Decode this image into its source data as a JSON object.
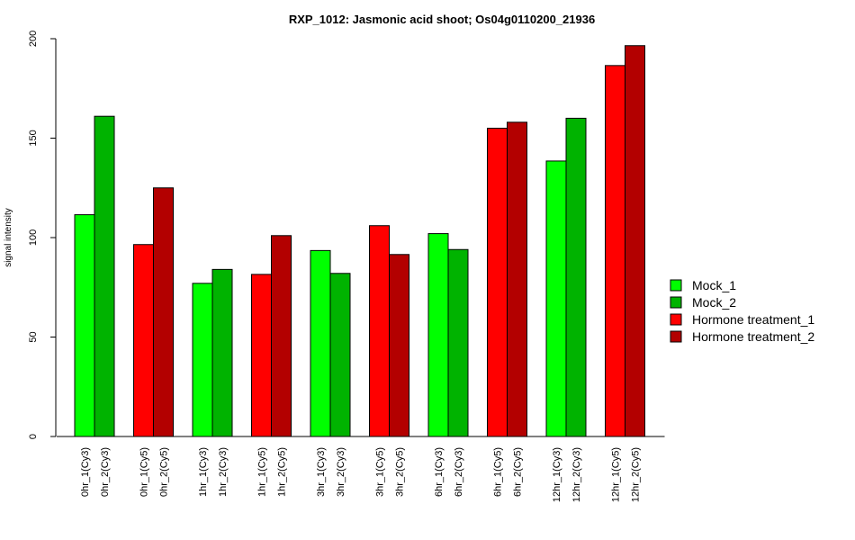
{
  "chart_data": {
    "type": "bar",
    "title": "RXP_1012: Jasmonic acid shoot; Os04g0110200_21936",
    "xlabel": "",
    "ylabel": "signal intensity",
    "ylim": [
      0,
      200
    ],
    "yticks": [
      0,
      50,
      100,
      150,
      200
    ],
    "legend_position": "right",
    "legend": [
      {
        "name": "Mock_1",
        "color": "#00ff00"
      },
      {
        "name": "Mock_2",
        "color": "#00b300"
      },
      {
        "name": "Hormone treatment_1",
        "color": "#ff0000"
      },
      {
        "name": "Hormone treatment_2",
        "color": "#b30000"
      }
    ],
    "groups": [
      {
        "bars": [
          {
            "label": "0hr_1(Cy3)",
            "value": 111.5,
            "color": "#00ff00"
          },
          {
            "label": "0hr_2(Cy3)",
            "value": 161,
            "color": "#00b300"
          }
        ]
      },
      {
        "bars": [
          {
            "label": "0hr_1(Cy5)",
            "value": 96.5,
            "color": "#ff0000"
          },
          {
            "label": "0hr_2(Cy5)",
            "value": 125,
            "color": "#b30000"
          }
        ]
      },
      {
        "bars": [
          {
            "label": "1hr_1(Cy3)",
            "value": 77,
            "color": "#00ff00"
          },
          {
            "label": "1hr_2(Cy3)",
            "value": 84,
            "color": "#00b300"
          }
        ]
      },
      {
        "bars": [
          {
            "label": "1hr_1(Cy5)",
            "value": 81.5,
            "color": "#ff0000"
          },
          {
            "label": "1hr_2(Cy5)",
            "value": 101,
            "color": "#b30000"
          }
        ]
      },
      {
        "bars": [
          {
            "label": "3hr_1(Cy3)",
            "value": 93.5,
            "color": "#00ff00"
          },
          {
            "label": "3hr_2(Cy3)",
            "value": 82,
            "color": "#00b300"
          }
        ]
      },
      {
        "bars": [
          {
            "label": "3hr_1(Cy5)",
            "value": 106,
            "color": "#ff0000"
          },
          {
            "label": "3hr_2(Cy5)",
            "value": 91.5,
            "color": "#b30000"
          }
        ]
      },
      {
        "bars": [
          {
            "label": "6hr_1(Cy3)",
            "value": 102,
            "color": "#00ff00"
          },
          {
            "label": "6hr_2(Cy3)",
            "value": 94,
            "color": "#00b300"
          }
        ]
      },
      {
        "bars": [
          {
            "label": "6hr_1(Cy5)",
            "value": 155,
            "color": "#ff0000"
          },
          {
            "label": "6hr_2(Cy5)",
            "value": 158,
            "color": "#b30000"
          }
        ]
      },
      {
        "bars": [
          {
            "label": "12hr_1(Cy3)",
            "value": 138.5,
            "color": "#00ff00"
          },
          {
            "label": "12hr_2(Cy3)",
            "value": 160,
            "color": "#00b300"
          }
        ]
      },
      {
        "bars": [
          {
            "label": "12hr_1(Cy5)",
            "value": 186.5,
            "color": "#ff0000"
          },
          {
            "label": "12hr_2(Cy5)",
            "value": 196.5,
            "color": "#b30000"
          }
        ]
      }
    ]
  }
}
